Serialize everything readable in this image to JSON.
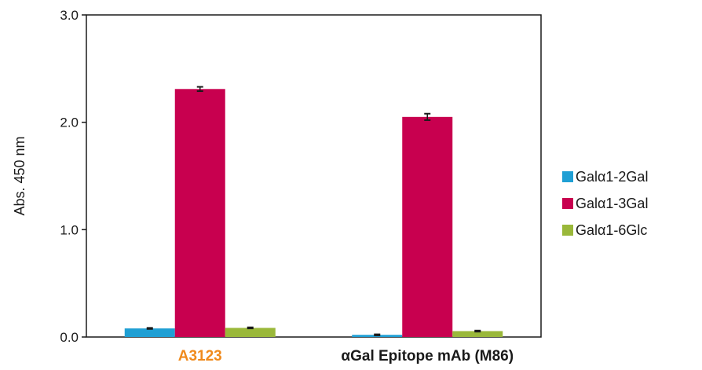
{
  "chart_data": {
    "type": "bar",
    "title": "",
    "xlabel": "",
    "ylabel": "Abs. 450 nm",
    "ylim": [
      0,
      3.0
    ],
    "yticks": [
      "0.0",
      "1.0",
      "2.0",
      "3.0"
    ],
    "categories": [
      "A3123",
      "αGal Epitope mAb (M86)"
    ],
    "category_colors": [
      "#f08a1c",
      "#1a1a1a"
    ],
    "series": [
      {
        "name": "Galα1-2Gal",
        "color": "#1f9fd4",
        "values": [
          0.08,
          0.02
        ],
        "errors": [
          0.005,
          0.005
        ]
      },
      {
        "name": "Galα1-3Gal",
        "color": "#c8004f",
        "values": [
          2.31,
          2.05
        ],
        "errors": [
          0.02,
          0.03
        ]
      },
      {
        "name": "Galα1-6Glc",
        "color": "#9ab83a",
        "values": [
          0.085,
          0.055
        ],
        "errors": [
          0.005,
          0.005
        ]
      }
    ],
    "grid": false,
    "legend_position": "right"
  }
}
